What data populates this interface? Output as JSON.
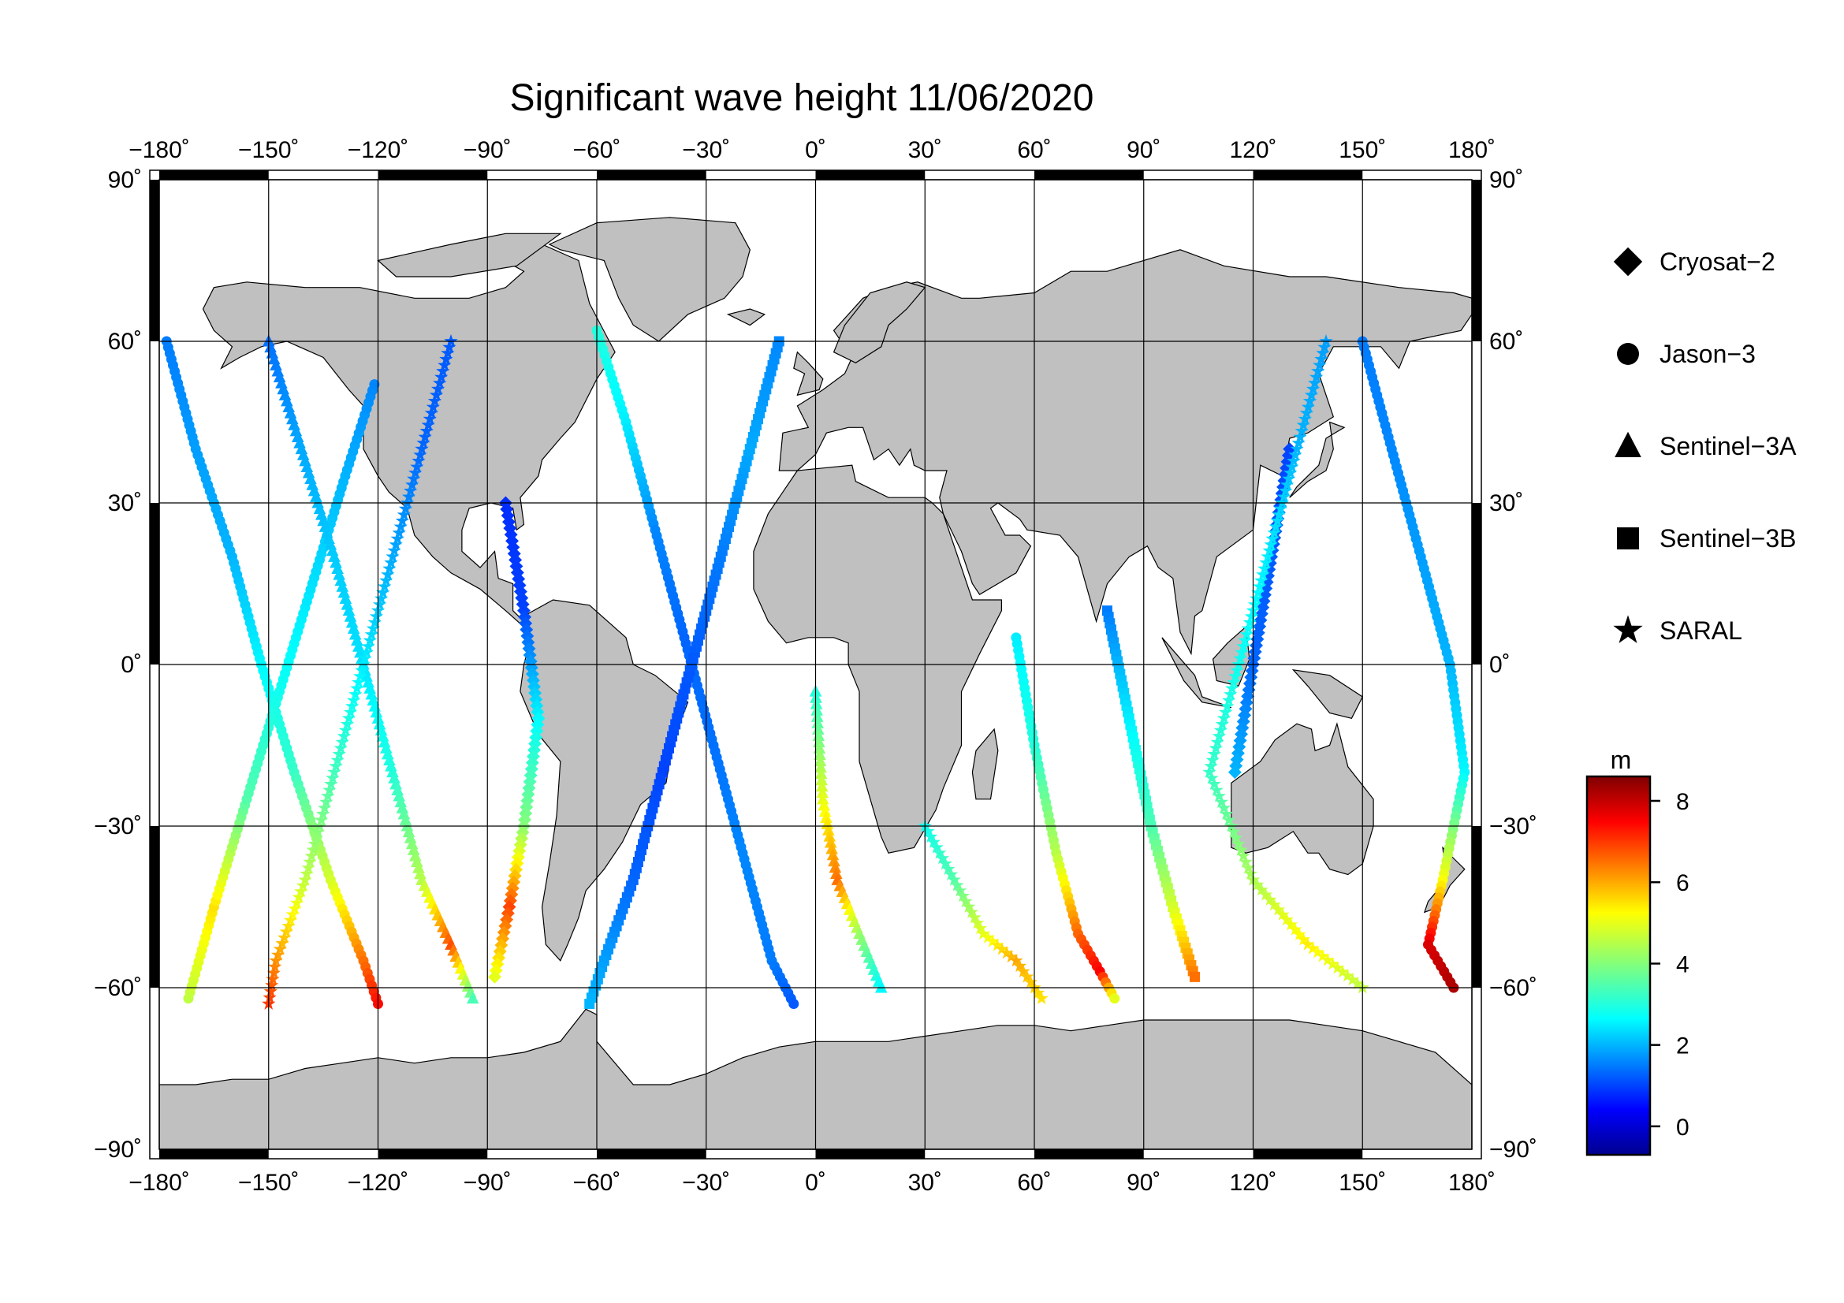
{
  "title": "Significant wave height 11/06/2020",
  "map": {
    "projection": "equirectangular",
    "lon_range": [
      -180,
      180
    ],
    "lat_range": [
      -90,
      90
    ],
    "lon_ticks": [
      -180,
      -150,
      -120,
      -90,
      -60,
      -30,
      0,
      30,
      60,
      90,
      120,
      150,
      180
    ],
    "lat_ticks": [
      90,
      60,
      30,
      0,
      -30,
      -60,
      -90
    ],
    "lon_tick_labels": [
      "−180˚",
      "−150˚",
      "−120˚",
      "−90˚",
      "−60˚",
      "−30˚",
      "0˚",
      "30˚",
      "60˚",
      "90˚",
      "120˚",
      "150˚",
      "180˚"
    ],
    "lat_tick_labels": [
      "90˚",
      "60˚",
      "30˚",
      "0˚",
      "−30˚",
      "−60˚",
      "−90˚"
    ],
    "grid": true,
    "land_color": "#c0c0c0",
    "ocean_color": "#ffffff",
    "frame_style": "alternating black/white border"
  },
  "legend": {
    "placement": "right",
    "items": [
      {
        "label": "Cryosat−2",
        "marker": "diamond"
      },
      {
        "label": "Jason−3",
        "marker": "circle"
      },
      {
        "label": "Sentinel−3A",
        "marker": "triangle"
      },
      {
        "label": "Sentinel−3B",
        "marker": "square"
      },
      {
        "label": "SARAL",
        "marker": "star"
      }
    ]
  },
  "colorbar": {
    "unit": "m",
    "range": [
      -0.7,
      8.6
    ],
    "ticks": [
      0,
      2,
      4,
      6,
      8
    ],
    "tick_labels": [
      "0",
      "2",
      "4",
      "6",
      "8"
    ],
    "colormap": "jet"
  },
  "chart_data": {
    "type": "scatter",
    "description_of_values": "satellite altimeter ground tracks colored by significant wave height (m)",
    "tracks": [
      {
        "satellite": "Jason-3",
        "points": [
          [
            -178,
            60,
            1.5
          ],
          [
            -170,
            40,
            1.8
          ],
          [
            -160,
            20,
            2.0
          ],
          [
            -152,
            0,
            2.6
          ],
          [
            -143,
            -20,
            3.2
          ],
          [
            -133,
            -40,
            4.8
          ],
          [
            -124,
            -55,
            6.5
          ],
          [
            -120,
            -63,
            7.4
          ]
        ]
      },
      {
        "satellite": "Jason-3",
        "points": [
          [
            -172,
            -62,
            4.6
          ],
          [
            -165,
            -45,
            5.5
          ],
          [
            -156,
            -25,
            3.5
          ],
          [
            -147,
            -5,
            2.8
          ],
          [
            -138,
            15,
            2.4
          ],
          [
            -129,
            35,
            2.0
          ],
          [
            -121,
            52,
            1.6
          ]
        ]
      },
      {
        "satellite": "Sentinel-3A",
        "points": [
          [
            -150,
            60,
            1.4
          ],
          [
            -141,
            40,
            1.9
          ],
          [
            -132,
            20,
            2.2
          ],
          [
            -124,
            0,
            2.4
          ],
          [
            -116,
            -20,
            3.0
          ],
          [
            -108,
            -40,
            4.5
          ],
          [
            -100,
            -52,
            6.8
          ],
          [
            -94,
            -62,
            3.4
          ]
        ]
      },
      {
        "satellite": "SARAL",
        "points": [
          [
            -100,
            60,
            1.2
          ],
          [
            -108,
            40,
            1.3
          ],
          [
            -116,
            20,
            1.9
          ],
          [
            -124,
            0,
            2.5
          ],
          [
            -132,
            -20,
            3.3
          ],
          [
            -140,
            -40,
            4.6
          ],
          [
            -148,
            -55,
            6.2
          ],
          [
            -150,
            -63,
            7.0
          ]
        ]
      },
      {
        "satellite": "Cryosat-2",
        "points": [
          [
            -85,
            30,
            0.8
          ],
          [
            -80,
            10,
            1.0
          ],
          [
            -76,
            -10,
            2.6
          ],
          [
            -80,
            -30,
            4.0
          ],
          [
            -84,
            -45,
            6.9
          ],
          [
            -88,
            -58,
            5.0
          ]
        ]
      },
      {
        "satellite": "Jason-3",
        "points": [
          [
            -60,
            62,
            3.0
          ],
          [
            -52,
            45,
            2.5
          ],
          [
            -44,
            25,
            1.6
          ],
          [
            -36,
            5,
            1.3
          ],
          [
            -28,
            -15,
            1.4
          ],
          [
            -20,
            -35,
            1.6
          ],
          [
            -12,
            -55,
            1.5
          ],
          [
            -6,
            -63,
            1.2
          ]
        ]
      },
      {
        "satellite": "Sentinel-3B",
        "points": [
          [
            -10,
            60,
            1.6
          ],
          [
            -18,
            40,
            1.9
          ],
          [
            -26,
            20,
            1.5
          ],
          [
            -34,
            0,
            1.2
          ],
          [
            -42,
            -20,
            1.0
          ],
          [
            -50,
            -40,
            1.3
          ],
          [
            -58,
            -55,
            1.8
          ],
          [
            -62,
            -63,
            2.0
          ]
        ]
      },
      {
        "satellite": "Sentinel-3A",
        "points": [
          [
            0,
            -5,
            3.0
          ],
          [
            2,
            -25,
            5.0
          ],
          [
            6,
            -40,
            6.5
          ],
          [
            12,
            -50,
            4.2
          ],
          [
            18,
            -60,
            2.6
          ]
        ]
      },
      {
        "satellite": "SARAL",
        "points": [
          [
            30,
            -30,
            2.8
          ],
          [
            38,
            -40,
            3.5
          ],
          [
            46,
            -50,
            5.0
          ],
          [
            55,
            -55,
            6.0
          ],
          [
            62,
            -62,
            5.5
          ]
        ]
      },
      {
        "satellite": "Jason-3",
        "points": [
          [
            55,
            5,
            2.5
          ],
          [
            60,
            -15,
            3.0
          ],
          [
            66,
            -35,
            4.5
          ],
          [
            72,
            -50,
            6.6
          ],
          [
            78,
            -57,
            7.5
          ],
          [
            82,
            -62,
            5.0
          ]
        ]
      },
      {
        "satellite": "Sentinel-3B",
        "points": [
          [
            80,
            10,
            1.5
          ],
          [
            86,
            -10,
            2.5
          ],
          [
            92,
            -30,
            3.4
          ],
          [
            98,
            -45,
            4.8
          ],
          [
            104,
            -58,
            6.5
          ]
        ]
      },
      {
        "satellite": "Cryosat-2",
        "points": [
          [
            130,
            40,
            1.0
          ],
          [
            125,
            20,
            1.2
          ],
          [
            120,
            0,
            1.3
          ],
          [
            115,
            -20,
            2.0
          ]
        ]
      },
      {
        "satellite": "Jason-3",
        "points": [
          [
            150,
            60,
            1.5
          ],
          [
            158,
            40,
            1.6
          ],
          [
            166,
            20,
            1.8
          ],
          [
            174,
            0,
            2.0
          ],
          [
            178,
            -20,
            2.6
          ],
          [
            172,
            -40,
            5.2
          ],
          [
            168,
            -52,
            7.8
          ],
          [
            175,
            -60,
            8.2
          ]
        ]
      },
      {
        "satellite": "SARAL",
        "points": [
          [
            140,
            60,
            1.8
          ],
          [
            132,
            40,
            2.0
          ],
          [
            124,
            20,
            2.5
          ],
          [
            116,
            0,
            2.8
          ],
          [
            108,
            -20,
            3.2
          ],
          [
            120,
            -40,
            4.4
          ],
          [
            135,
            -52,
            5.4
          ],
          [
            150,
            -60,
            4.6
          ]
        ]
      }
    ]
  }
}
